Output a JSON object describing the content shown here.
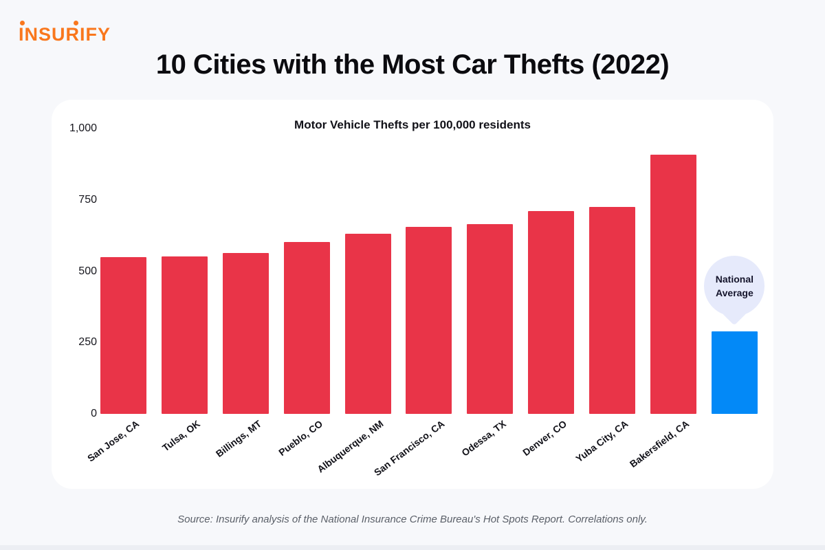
{
  "logo": {
    "text": "INSURIFY",
    "brand_color": "#f9771d"
  },
  "header": {
    "title": "10 Cities with the Most Car Thefts (2022)"
  },
  "chart_data": {
    "type": "bar",
    "title": "Motor Vehicle Thefts per 100,000 residents",
    "categories": [
      "San Jose, CA",
      "Tulsa, OK",
      "Billings, MT",
      "Pueblo, CO",
      "Albuquerque, NM",
      "San Francisco, CA",
      "Odessa, TX",
      "Denver, CO",
      "Yuba City, CA",
      "Bakersfield, CA"
    ],
    "values": [
      550,
      552,
      565,
      602,
      632,
      655,
      665,
      710,
      725,
      908
    ],
    "national_average": {
      "label": "National Average",
      "value": 290
    },
    "xlabel": "",
    "ylabel": "",
    "ylim": [
      0,
      1000
    ],
    "yticks": [
      0,
      250,
      500,
      750,
      1000
    ],
    "ytick_labels": [
      "0",
      "250",
      "500",
      "750",
      "1,000"
    ],
    "bar_color": "#e93448",
    "national_average_bar_color": "#0389f7",
    "annotation_bubble_color": "#e6eafb",
    "grid": false,
    "legend": "none"
  },
  "footer": {
    "source": "Source: Insurify analysis of the National Insurance Crime Bureau's Hot Spots Report. Correlations only."
  }
}
